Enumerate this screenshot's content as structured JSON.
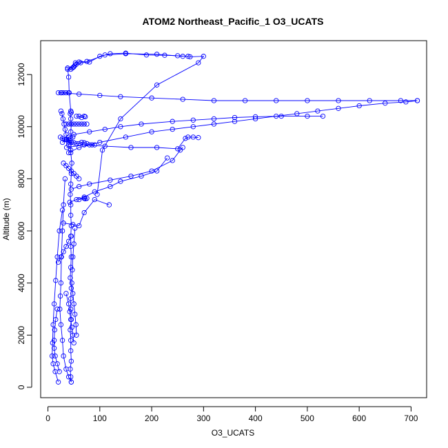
{
  "chart_data": {
    "type": "line",
    "title": "ATOM2 Northeast_Pacific_1 O3_UCATS",
    "xlabel": "O3_UCATS",
    "ylabel": "Altitude (m)",
    "xlim": [
      -14,
      730
    ],
    "ylim": [
      -400,
      13300
    ],
    "x_ticks": [
      0,
      100,
      200,
      300,
      400,
      500,
      600,
      700
    ],
    "y_ticks": [
      0,
      2000,
      4000,
      6000,
      8000,
      10000,
      12000
    ],
    "grid": false,
    "legend": "none",
    "marker": "open-circle",
    "line_color": "#0000ff",
    "series": [
      {
        "x": [
          45,
          44,
          43,
          45,
          44,
          44,
          43,
          45,
          44,
          44,
          45,
          43,
          44,
          45,
          44,
          44,
          45,
          44,
          44,
          43,
          44,
          45,
          46,
          44,
          45,
          44,
          45,
          44,
          43,
          45,
          44,
          41,
          40,
          38
        ],
        "y": [
          200,
          400,
          700,
          1000,
          1400,
          1800,
          2200,
          2600,
          3000,
          3400,
          3800,
          4200,
          4600,
          5000,
          5400,
          5800,
          6200,
          6600,
          7000,
          7400,
          7800,
          8200,
          8600,
          9000,
          9400,
          9800,
          10100,
          10300,
          10500,
          10550,
          10600,
          11300,
          11900,
          12250
        ]
      },
      {
        "x": [
          44,
          47,
          49,
          50,
          52,
          55,
          53,
          60,
          75,
          110,
          150,
          210,
          260
        ],
        "y": [
          12200,
          12250,
          12280,
          12300,
          12350,
          12400,
          12450,
          12480,
          12500,
          12750,
          12800,
          12780,
          12700
        ]
      },
      {
        "x": [
          38,
          63,
          80,
          100,
          120,
          150,
          190,
          225,
          250,
          270,
          274,
          300,
          290,
          210,
          140,
          105,
          95
        ],
        "y": [
          12200,
          12450,
          12480,
          12700,
          12800,
          12820,
          12750,
          12740,
          12720,
          12700,
          12680,
          12700,
          12450,
          11600,
          10300,
          9100,
          7400
        ]
      },
      {
        "x": [
          28,
          35,
          40,
          50,
          80,
          110,
          140,
          180,
          240,
          280,
          320,
          360,
          400,
          450,
          500,
          530
        ],
        "y": [
          9400,
          9500,
          9600,
          9700,
          9800,
          9900,
          10000,
          10100,
          10200,
          10250,
          10300,
          10350,
          10380,
          10400,
          10400,
          10400
        ]
      },
      {
        "x": [
          36,
          70,
          110,
          160,
          210,
          250,
          265,
          270,
          280,
          290
        ],
        "y": [
          9200,
          9300,
          9250,
          9200,
          9200,
          9150,
          9550,
          9600,
          9600,
          9580
        ]
      },
      {
        "x": [
          26,
          60,
          100,
          140,
          200,
          260,
          320,
          380,
          440,
          500,
          560,
          620,
          680,
          712
        ],
        "y": [
          11300,
          11250,
          11200,
          11150,
          11100,
          11050,
          11000,
          11000,
          11000,
          11000,
          11000,
          11000,
          11000,
          11000
        ]
      },
      {
        "x": [
          712,
          690,
          650,
          600,
          560,
          520,
          480,
          440,
          400,
          360,
          320,
          280,
          240,
          200,
          150,
          100,
          60,
          40
        ],
        "y": [
          11000,
          10950,
          10900,
          10800,
          10700,
          10600,
          10500,
          10400,
          10300,
          10200,
          10100,
          10000,
          9900,
          9800,
          9600,
          9400,
          9200,
          9000
        ]
      },
      {
        "x": [
          45,
          60,
          80,
          120,
          160,
          200,
          240,
          255,
          260
        ],
        "y": [
          7600,
          7700,
          7800,
          7950,
          8100,
          8300,
          8700,
          9100,
          9200
        ]
      },
      {
        "x": [
          42,
          55,
          70,
          90,
          120,
          140,
          180,
          210,
          230
        ],
        "y": [
          7100,
          7200,
          7300,
          7500,
          7700,
          7900,
          8100,
          8300,
          8800
        ]
      },
      {
        "x": [
          30,
          48,
          60,
          70,
          90,
          118
        ],
        "y": [
          6300,
          6250,
          6200,
          6700,
          7200,
          7000
        ]
      },
      {
        "x": [
          28,
          22,
          18,
          15,
          12,
          10,
          9,
          8,
          10,
          14,
          20
        ],
        "y": [
          6800,
          6000,
          5000,
          4100,
          3200,
          2400,
          1700,
          1200,
          900,
          600,
          200
        ]
      },
      {
        "x": [
          33,
          30,
          28,
          26,
          25,
          24,
          23,
          25,
          28,
          30,
          35,
          40,
          45
        ],
        "y": [
          8000,
          7000,
          6000,
          5000,
          4000,
          3500,
          3000,
          2400,
          1800,
          1200,
          700,
          400,
          200
        ]
      },
      {
        "x": [
          52,
          50,
          48,
          47,
          46,
          48,
          50,
          52,
          54,
          55
        ],
        "y": [
          6100,
          5500,
          5000,
          4500,
          4000,
          3600,
          3200,
          2800,
          2400,
          2000
        ]
      },
      {
        "x": [
          25,
          27,
          29,
          31,
          33,
          35,
          37,
          40,
          44
        ],
        "y": [
          10600,
          10500,
          10300,
          10100,
          9900,
          9700,
          9500,
          9300,
          9100
        ]
      },
      {
        "x": [
          35,
          40,
          45,
          50,
          55,
          60,
          65,
          70,
          75
        ],
        "y": [
          10100,
          10100,
          10100,
          10100,
          10100,
          10100,
          10100,
          10100,
          10100
        ]
      },
      {
        "x": [
          55,
          60,
          65,
          70,
          72
        ],
        "y": [
          10400,
          10400,
          10350,
          10400,
          10380
        ]
      },
      {
        "x": [
          40,
          45,
          50,
          55,
          60,
          65,
          70,
          75,
          80,
          85,
          90
        ],
        "y": [
          9400,
          9400,
          9380,
          9350,
          9350,
          9400,
          9380,
          9350,
          9300,
          9300,
          9300
        ]
      },
      {
        "x": [
          18,
          15,
          13,
          12,
          12,
          14,
          18,
          22
        ],
        "y": [
          3000,
          2600,
          2200,
          1800,
          1500,
          1200,
          900,
          600
        ]
      },
      {
        "x": [
          60,
          70,
          75,
          72,
          70
        ],
        "y": [
          7200,
          7250,
          7250,
          7230,
          7250
        ]
      },
      {
        "x": [
          20,
          25,
          30,
          35,
          40
        ],
        "y": [
          11300,
          11300,
          11300,
          11300,
          11300
        ]
      },
      {
        "x": [
          24,
          28,
          32,
          36,
          40,
          44,
          48
        ],
        "y": [
          9600,
          9550,
          9500,
          9500,
          9500,
          9550,
          9600
        ]
      },
      {
        "x": [
          30,
          35,
          40,
          45,
          50,
          55,
          60
        ],
        "y": [
          8600,
          8500,
          8400,
          8300,
          8200,
          8100,
          8000
        ]
      },
      {
        "x": [
          20,
          25,
          30,
          35,
          40,
          45
        ],
        "y": [
          4800,
          5000,
          5200,
          5400,
          5600,
          5800
        ]
      },
      {
        "x": [
          35,
          40,
          42,
          44,
          46,
          48,
          50
        ],
        "y": [
          3600,
          3200,
          2900,
          2600,
          2300,
          2000,
          1700
        ]
      }
    ]
  }
}
